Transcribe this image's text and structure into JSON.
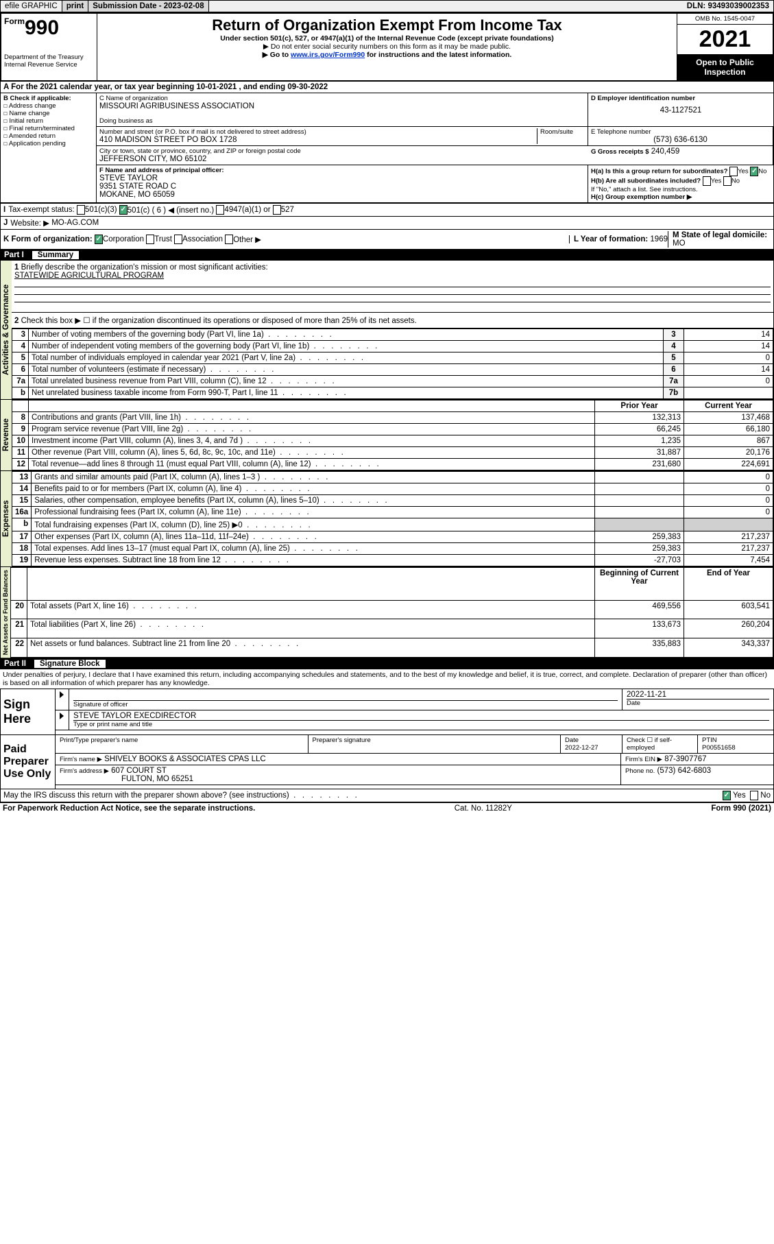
{
  "topbar": {
    "efile": "efile GRAPHIC",
    "print": "print",
    "subdate_label": "Submission Date - 2023-02-08",
    "dln": "DLN: 93493039002353"
  },
  "titleblock": {
    "form_prefix": "Form",
    "form_no": "990",
    "main_title": "Return of Organization Exempt From Income Tax",
    "sub1": "Under section 501(c), 527, or 4947(a)(1) of the Internal Revenue Code (except private foundations)",
    "sub2": "▶ Do not enter social security numbers on this form as it may be made public.",
    "sub3_pre": "▶ Go to ",
    "sub3_link": "www.irs.gov/Form990",
    "sub3_post": " for instructions and the latest information.",
    "dept": "Department of the Treasury\nInternal Revenue Service",
    "omb": "OMB No. 1545-0047",
    "year": "2021",
    "inspection": "Open to Public Inspection"
  },
  "period": {
    "line": "A For the 2021 calendar year, or tax year beginning 10-01-2021 , and ending 09-30-2022"
  },
  "header": {
    "B_label": "B Check if applicable:",
    "B_opts": [
      "Address change",
      "Name change",
      "Initial return",
      "Final return/terminated",
      "Amended return",
      "Application pending"
    ],
    "C_label": "C Name of organization",
    "C_name": "MISSOURI AGRIBUSINESS ASSOCIATION",
    "dba_label": "Doing business as",
    "addr_label": "Number and street (or P.O. box if mail is not delivered to street address)",
    "room_label": "Room/suite",
    "addr": "410 MADISON STREET PO BOX 1728",
    "city_label": "City or town, state or province, country, and ZIP or foreign postal code",
    "city": "JEFFERSON CITY, MO  65102",
    "D_label": "D Employer identification number",
    "D_ein": "43-1127521",
    "E_label": "E Telephone number",
    "E_phone": "(573) 636-6130",
    "G_label": "G Gross receipts $",
    "G_val": "240,459",
    "F_label": "F Name and address of principal officer:",
    "F_name": "STEVE TAYLOR",
    "F_addr1": "9351 STATE ROAD C",
    "F_addr2": "MOKANE, MO  65059",
    "Ha_label": "H(a) Is this a group return for subordinates?",
    "Hb_label": "H(b) Are all subordinates included?",
    "Hc_label": "H(c) Group exemption number ▶",
    "H_attach": "If \"No,\" attach a list. See instructions.",
    "I_label": "Tax-exempt status:",
    "I_opts": [
      "501(c)(3)",
      "501(c) ( 6 ) ◀ (insert no.)",
      "4947(a)(1) or",
      "527"
    ],
    "J_label": "Website: ▶",
    "J_site": "MO-AG.COM",
    "K_label": "K Form of organization:",
    "K_opts": [
      "Corporation",
      "Trust",
      "Association",
      "Other ▶"
    ],
    "L_label": "L Year of formation:",
    "L_val": "1969",
    "M_label": "M State of legal domicile:",
    "M_val": "MO",
    "yes": "Yes",
    "no": "No"
  },
  "partI": {
    "hdr_num": "Part I",
    "hdr_name": "Summary",
    "line1_label": "Briefly describe the organization's mission or most significant activities:",
    "line1_text": "STATEWIDE AGRICULTURAL PROGRAM",
    "line2": "Check this box ▶ ☐ if the organization discontinued its operations or disposed of more than 25% of its net assets.",
    "tabs": {
      "gov": "Activities & Governance",
      "rev": "Revenue",
      "exp": "Expenses",
      "net": "Net Assets or Fund Balances"
    },
    "cols": {
      "prior": "Prior Year",
      "current": "Current Year",
      "boy": "Beginning of Current Year",
      "eoy": "End of Year"
    },
    "lines_gov": [
      {
        "n": "3",
        "txt": "Number of voting members of the governing body (Part VI, line 1a)",
        "box": "3",
        "val": "14"
      },
      {
        "n": "4",
        "txt": "Number of independent voting members of the governing body (Part VI, line 1b)",
        "box": "4",
        "val": "14"
      },
      {
        "n": "5",
        "txt": "Total number of individuals employed in calendar year 2021 (Part V, line 2a)",
        "box": "5",
        "val": "0"
      },
      {
        "n": "6",
        "txt": "Total number of volunteers (estimate if necessary)",
        "box": "6",
        "val": "14"
      },
      {
        "n": "7a",
        "txt": "Total unrelated business revenue from Part VIII, column (C), line 12",
        "box": "7a",
        "val": "0"
      },
      {
        "n": "b",
        "txt": "Net unrelated business taxable income from Form 990-T, Part I, line 11",
        "box": "7b",
        "val": ""
      }
    ],
    "lines_rev": [
      {
        "n": "8",
        "txt": "Contributions and grants (Part VIII, line 1h)",
        "p": "132,313",
        "c": "137,468"
      },
      {
        "n": "9",
        "txt": "Program service revenue (Part VIII, line 2g)",
        "p": "66,245",
        "c": "66,180"
      },
      {
        "n": "10",
        "txt": "Investment income (Part VIII, column (A), lines 3, 4, and 7d )",
        "p": "1,235",
        "c": "867"
      },
      {
        "n": "11",
        "txt": "Other revenue (Part VIII, column (A), lines 5, 6d, 8c, 9c, 10c, and 11e)",
        "p": "31,887",
        "c": "20,176"
      },
      {
        "n": "12",
        "txt": "Total revenue—add lines 8 through 11 (must equal Part VIII, column (A), line 12)",
        "p": "231,680",
        "c": "224,691"
      }
    ],
    "lines_exp": [
      {
        "n": "13",
        "txt": "Grants and similar amounts paid (Part IX, column (A), lines 1–3 )",
        "p": "",
        "c": "0"
      },
      {
        "n": "14",
        "txt": "Benefits paid to or for members (Part IX, column (A), line 4)",
        "p": "",
        "c": "0"
      },
      {
        "n": "15",
        "txt": "Salaries, other compensation, employee benefits (Part IX, column (A), lines 5–10)",
        "p": "",
        "c": "0"
      },
      {
        "n": "16a",
        "txt": "Professional fundraising fees (Part IX, column (A), line 11e)",
        "p": "",
        "c": "0"
      },
      {
        "n": "b",
        "txt": "Total fundraising expenses (Part IX, column (D), line 25) ▶0",
        "p": "shade",
        "c": "shade"
      },
      {
        "n": "17",
        "txt": "Other expenses (Part IX, column (A), lines 11a–11d, 11f–24e)",
        "p": "259,383",
        "c": "217,237"
      },
      {
        "n": "18",
        "txt": "Total expenses. Add lines 13–17 (must equal Part IX, column (A), line 25)",
        "p": "259,383",
        "c": "217,237"
      },
      {
        "n": "19",
        "txt": "Revenue less expenses. Subtract line 18 from line 12",
        "p": "-27,703",
        "c": "7,454"
      }
    ],
    "lines_net": [
      {
        "n": "20",
        "txt": "Total assets (Part X, line 16)",
        "p": "469,556",
        "c": "603,541"
      },
      {
        "n": "21",
        "txt": "Total liabilities (Part X, line 26)",
        "p": "133,673",
        "c": "260,204"
      },
      {
        "n": "22",
        "txt": "Net assets or fund balances. Subtract line 21 from line 20",
        "p": "335,883",
        "c": "343,337"
      }
    ]
  },
  "partII": {
    "hdr_num": "Part II",
    "hdr_name": "Signature Block",
    "jurat": "Under penalties of perjury, I declare that I have examined this return, including accompanying schedules and statements, and to the best of my knowledge and belief, it is true, correct, and complete. Declaration of preparer (other than officer) is based on all information of which preparer has any knowledge.",
    "sign_here": "Sign Here",
    "sig_officer": "Signature of officer",
    "sig_date": "Date",
    "sig_date_val": "2022-11-21",
    "officer_name": "STEVE TAYLOR  EXECDIRECTOR",
    "officer_type": "Type or print name and title",
    "paid": "Paid Preparer Use Only",
    "prep_name_lbl": "Print/Type preparer's name",
    "prep_sig_lbl": "Preparer's signature",
    "prep_date_lbl": "Date",
    "prep_date": "2022-12-27",
    "prep_self": "Check ☐ if self-employed",
    "ptin_lbl": "PTIN",
    "ptin": "P00551658",
    "firm_name_lbl": "Firm's name ▶",
    "firm_name": "SHIVELY BOOKS & ASSOCIATES CPAS LLC",
    "firm_ein_lbl": "Firm's EIN ▶",
    "firm_ein": "87-3907767",
    "firm_addr_lbl": "Firm's address ▶",
    "firm_addr1": "607 COURT ST",
    "firm_addr2": "FULTON, MO 65251",
    "firm_phone_lbl": "Phone no.",
    "firm_phone": "(573) 642-6803",
    "discuss": "May the IRS discuss this return with the preparer shown above? (see instructions)"
  },
  "footer": {
    "pra": "For Paperwork Reduction Act Notice, see the separate instructions.",
    "cat": "Cat. No. 11282Y",
    "form": "Form 990 (2021)"
  }
}
